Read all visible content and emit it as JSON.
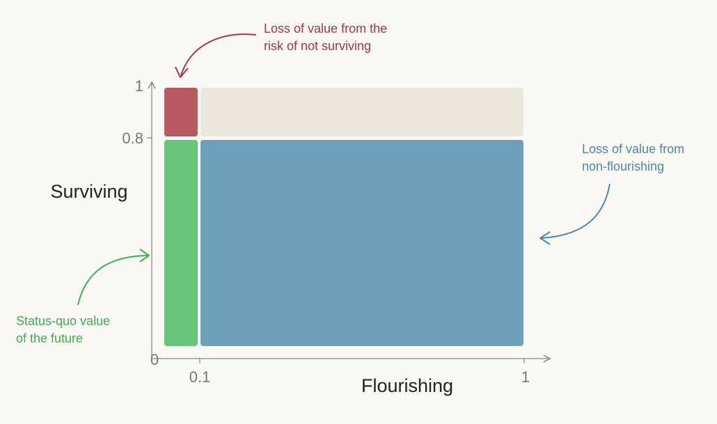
{
  "y_axis": {
    "label": "Surviving",
    "ticks": [
      "1",
      "0.8",
      "0"
    ]
  },
  "x_axis": {
    "label": "Flourishing",
    "ticks": [
      "0.1",
      "1"
    ]
  },
  "annotations": {
    "top": {
      "line1": "Loss of value from the",
      "line2": "risk of not surviving",
      "color": "#a8344a"
    },
    "right": {
      "line1": "Loss of value from",
      "line2": "non-flourishing",
      "color": "#4f86a8"
    },
    "left": {
      "line1": "Status-quo value",
      "line2": "of the future",
      "color": "#3fae55"
    }
  },
  "colors": {
    "background": "#faf8f3",
    "not_surviving_loss": "#b85a62",
    "top_remaining": "#e9e6da",
    "status_quo_value": "#66c57a",
    "non_flourishing_loss": "#6c9fba",
    "axis": "#888888"
  }
}
